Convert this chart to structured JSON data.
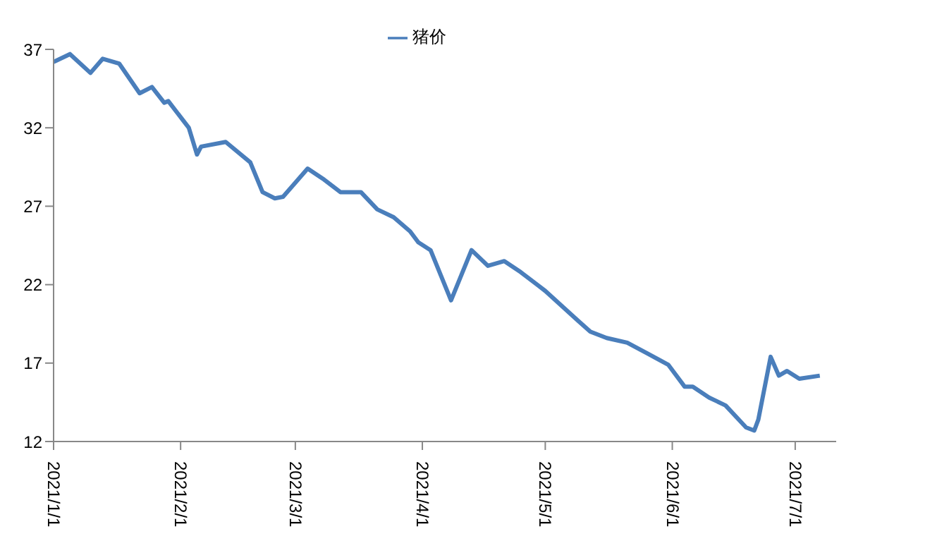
{
  "chart_data": {
    "type": "line",
    "x": [
      "2021-01-01",
      "2021-01-05",
      "2021-01-10",
      "2021-01-13",
      "2021-01-17",
      "2021-01-22",
      "2021-01-25",
      "2021-01-28",
      "2021-01-29",
      "2021-02-03",
      "2021-02-05",
      "2021-02-06",
      "2021-02-12",
      "2021-02-18",
      "2021-02-21",
      "2021-02-24",
      "2021-02-26",
      "2021-03-04",
      "2021-03-08",
      "2021-03-12",
      "2021-03-17",
      "2021-03-21",
      "2021-03-25",
      "2021-03-29",
      "2021-03-31",
      "2021-04-03",
      "2021-04-08",
      "2021-04-13",
      "2021-04-17",
      "2021-04-21",
      "2021-04-25",
      "2021-05-01",
      "2021-05-09",
      "2021-05-12",
      "2021-05-16",
      "2021-05-21",
      "2021-05-26",
      "2021-05-31",
      "2021-06-04",
      "2021-06-06",
      "2021-06-10",
      "2021-06-14",
      "2021-06-19",
      "2021-06-21",
      "2021-06-22",
      "2021-06-25",
      "2021-06-27",
      "2021-06-29",
      "2021-07-02",
      "2021-07-07"
    ],
    "series": [
      {
        "name": "猪价",
        "color": "#4a7ebb",
        "values": [
          36.2,
          36.7,
          35.5,
          36.4,
          36.1,
          34.2,
          34.6,
          33.6,
          33.7,
          32.0,
          30.3,
          30.8,
          31.1,
          29.8,
          27.9,
          27.5,
          27.6,
          29.4,
          28.7,
          27.9,
          27.9,
          26.8,
          26.3,
          25.4,
          24.7,
          24.2,
          21.0,
          24.2,
          23.2,
          23.5,
          22.8,
          21.6,
          19.7,
          19.0,
          18.6,
          18.3,
          17.6,
          16.9,
          15.5,
          15.5,
          14.8,
          14.3,
          12.9,
          12.7,
          13.4,
          17.4,
          16.2,
          16.5,
          16.0,
          16.2
        ]
      }
    ],
    "xlim": [
      "2021-01-01",
      "2021-07-11"
    ],
    "xticks": [
      {
        "value": "2021-01-01",
        "label": "2021/1/1"
      },
      {
        "value": "2021-02-01",
        "label": "2021/2/1"
      },
      {
        "value": "2021-03-01",
        "label": "2021/3/1"
      },
      {
        "value": "2021-04-01",
        "label": "2021/4/1"
      },
      {
        "value": "2021-05-01",
        "label": "2021/5/1"
      },
      {
        "value": "2021-06-01",
        "label": "2021/6/1"
      },
      {
        "value": "2021-07-01",
        "label": "2021/7/1"
      }
    ],
    "ylim": [
      12,
      37
    ],
    "yticks": [
      12,
      17,
      22,
      27,
      32,
      37
    ],
    "grid": false,
    "legend": "top",
    "marker": "none",
    "line_style": "solid"
  }
}
